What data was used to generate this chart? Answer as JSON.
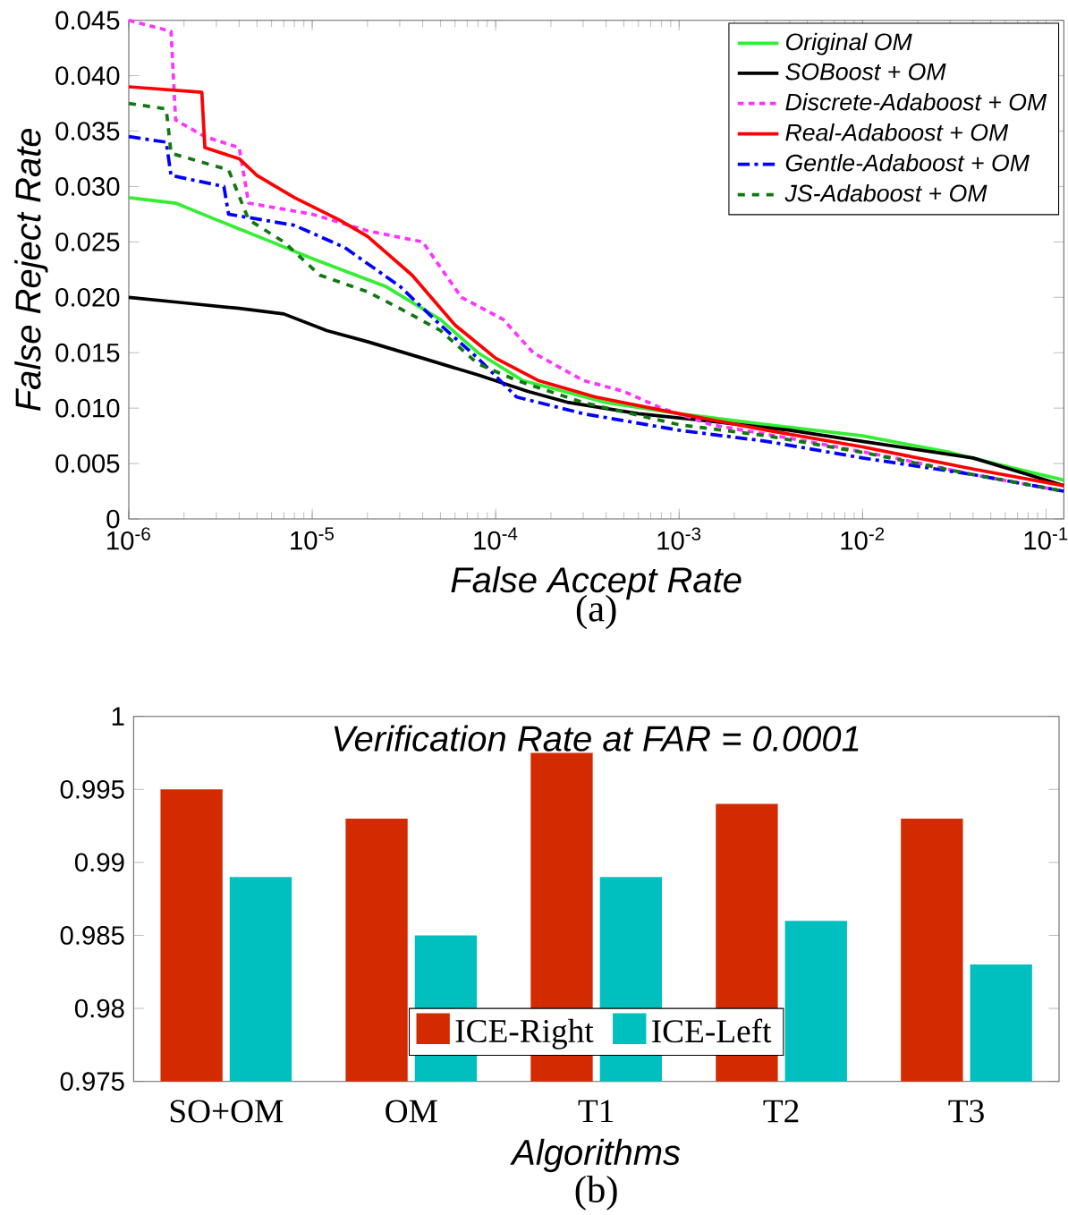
{
  "chart_data": [
    {
      "type": "line",
      "xlabel": "False Accept Rate",
      "ylabel": "False Reject Rate",
      "log": "x",
      "xlim": [
        1e-06,
        0.125
      ],
      "ylim": [
        0,
        0.045
      ],
      "xticks": [
        {
          "value": 1e-06,
          "label": "10$^{-6}$"
        },
        {
          "value": 1e-05,
          "label": "10$^{-5}$"
        },
        {
          "value": 0.0001,
          "label": "10$^{-4}$"
        },
        {
          "value": 0.001,
          "label": "10$^{-3}$"
        },
        {
          "value": 0.01,
          "label": "10$^{-2}$"
        },
        {
          "value": 0.1,
          "label": "10$^{-1}$"
        }
      ],
      "yticks": [
        0,
        {
          "value": 0.005,
          "label": "0.005"
        },
        {
          "value": 0.01,
          "label": "0.010"
        },
        {
          "value": 0.015,
          "label": "0.015"
        },
        {
          "value": 0.02,
          "label": "0.020"
        },
        {
          "value": 0.025,
          "label": "0.025"
        },
        {
          "value": 0.03,
          "label": "0.030"
        },
        {
          "value": 0.035,
          "label": "0.035"
        },
        {
          "value": 0.04,
          "label": "0.040"
        },
        {
          "value": 0.045,
          "label": "0.045"
        }
      ],
      "legend": "top right",
      "marker": "none",
      "annotations": [
        "(a)"
      ],
      "series": [
        {
          "name": "Original OM",
          "color": "#33ee33",
          "line_style": "solid",
          "x": [
            1e-06,
            1.8e-06,
            3e-06,
            6e-06,
            1e-05,
            2.5e-05,
            5e-05,
            8e-05,
            0.00014,
            0.0004,
            0.001,
            0.003,
            0.01,
            0.03,
            0.07,
            0.125
          ],
          "values": [
            0.029,
            0.0285,
            0.027,
            0.025,
            0.0235,
            0.021,
            0.018,
            0.015,
            0.0125,
            0.0105,
            0.0095,
            0.0085,
            0.0075,
            0.006,
            0.0045,
            0.0035
          ]
        },
        {
          "name": "SOBoost + OM",
          "color": "#000000",
          "line_style": "solid",
          "x": [
            1e-06,
            2e-06,
            4e-06,
            7e-06,
            1.2e-05,
            2e-05,
            4e-05,
            8e-05,
            0.00015,
            0.00025,
            0.0006,
            0.0015,
            0.004,
            0.01,
            0.04,
            0.08,
            0.125
          ],
          "values": [
            0.02,
            0.0195,
            0.019,
            0.0185,
            0.017,
            0.016,
            0.0145,
            0.013,
            0.0115,
            0.0105,
            0.0095,
            0.0088,
            0.008,
            0.007,
            0.0055,
            0.004,
            0.003
          ]
        },
        {
          "name": "Discrete-Adaboost + OM",
          "color": "#ff33ff",
          "line_style": "dotted",
          "x": [
            1e-06,
            1.7e-06,
            1.8e-06,
            2.6e-06,
            4e-06,
            4.5e-06,
            1e-05,
            2e-05,
            4e-05,
            6.5e-05,
            0.00011,
            0.00016,
            0.0003,
            0.0005,
            0.0008,
            0.0015,
            0.005,
            0.015,
            0.04,
            0.125
          ],
          "values": [
            0.045,
            0.044,
            0.036,
            0.0345,
            0.0335,
            0.0285,
            0.0275,
            0.026,
            0.025,
            0.02,
            0.018,
            0.015,
            0.0125,
            0.0115,
            0.01,
            0.0085,
            0.007,
            0.0055,
            0.004,
            0.0025
          ]
        },
        {
          "name": "Real-Adaboost + OM",
          "color": "#ff0000",
          "line_style": "solid",
          "x": [
            1e-06,
            2.5e-06,
            2.6e-06,
            4e-06,
            5e-06,
            8e-06,
            1.4e-05,
            2e-05,
            3.5e-05,
            6e-05,
            0.0001,
            0.00017,
            0.00035,
            0.001,
            0.003,
            0.01,
            0.04,
            0.125
          ],
          "values": [
            0.039,
            0.0385,
            0.0335,
            0.0325,
            0.031,
            0.029,
            0.027,
            0.0255,
            0.022,
            0.0175,
            0.0145,
            0.0125,
            0.011,
            0.0095,
            0.008,
            0.0065,
            0.0045,
            0.003
          ]
        },
        {
          "name": "Gentle-Adaboost + OM",
          "color": "#0000ff",
          "line_style": "dashdot",
          "x": [
            1e-06,
            1.6e-06,
            1.7e-06,
            3.3e-06,
            3.5e-06,
            8e-06,
            1.5e-05,
            3e-05,
            5e-05,
            8e-05,
            0.00013,
            0.0003,
            0.001,
            0.003,
            0.01,
            0.04,
            0.125
          ],
          "values": [
            0.0345,
            0.034,
            0.031,
            0.03,
            0.0275,
            0.0265,
            0.0245,
            0.021,
            0.0175,
            0.0145,
            0.011,
            0.0095,
            0.008,
            0.007,
            0.0055,
            0.004,
            0.0025
          ]
        },
        {
          "name": "JS-Adaboost + OM",
          "color": "#117711",
          "line_style": "dashed",
          "x": [
            1e-06,
            1.6e-06,
            1.7e-06,
            3.5e-06,
            4.5e-06,
            7e-06,
            1.1e-05,
            2e-05,
            3e-05,
            5e-05,
            8e-05,
            0.00013,
            0.0003,
            0.001,
            0.003,
            0.01,
            0.04,
            0.125
          ],
          "values": [
            0.0375,
            0.037,
            0.033,
            0.0315,
            0.027,
            0.025,
            0.022,
            0.0205,
            0.019,
            0.017,
            0.014,
            0.0125,
            0.0105,
            0.0085,
            0.0075,
            0.006,
            0.004,
            0.0025
          ]
        }
      ]
    },
    {
      "type": "bar",
      "title": "Verification Rate at FAR = 0.0001",
      "xlabel": "Algorithms",
      "categories": [
        "SO+OM",
        "OM",
        "T1",
        "T2",
        "T3"
      ],
      "ylim": [
        0.975,
        1
      ],
      "yticks": [
        0.975,
        0.98,
        0.985,
        0.99,
        0.995,
        1
      ],
      "legend": "bottom",
      "annotations": [
        "(b)"
      ],
      "series": [
        {
          "name": "ICE-Right",
          "color": "#d42a00",
          "values": [
            0.995,
            0.993,
            0.9975,
            0.994,
            0.993
          ]
        },
        {
          "name": "ICE-Left",
          "color": "#00bfbf",
          "values": [
            0.989,
            0.985,
            0.989,
            0.986,
            0.983
          ]
        }
      ]
    }
  ]
}
